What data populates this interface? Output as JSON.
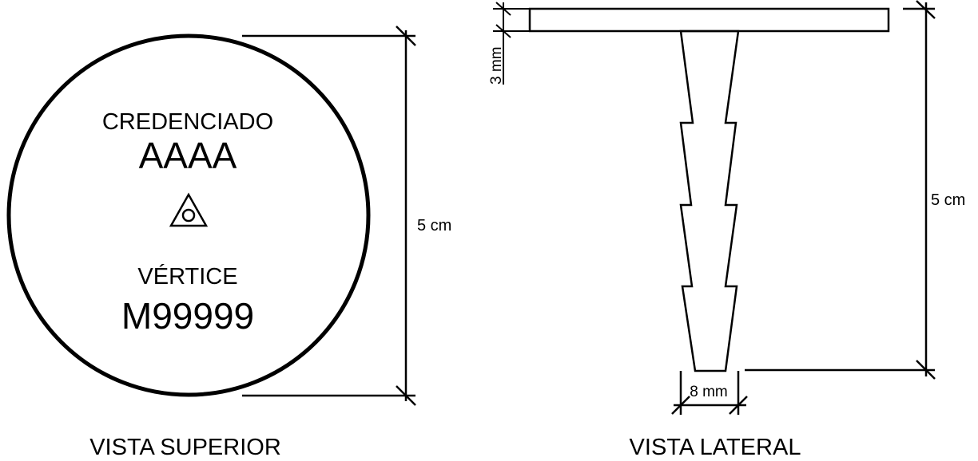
{
  "top_view": {
    "label_credenciado": "CREDENCIADO",
    "code_credenciado": "AAAA",
    "label_vertice": "VÉRTICE",
    "code_vertice": "M99999",
    "symbol_icon": "triangle-circle-icon",
    "dimension_diameter": "5 cm",
    "caption": "VISTA SUPERIOR"
  },
  "side_view": {
    "dimension_head_thickness": "3 mm",
    "dimension_length": "5 cm",
    "dimension_tip_width": "8 mm",
    "caption": "VISTA LATERAL"
  },
  "colors": {
    "stroke": "#000000",
    "background": "#ffffff"
  }
}
